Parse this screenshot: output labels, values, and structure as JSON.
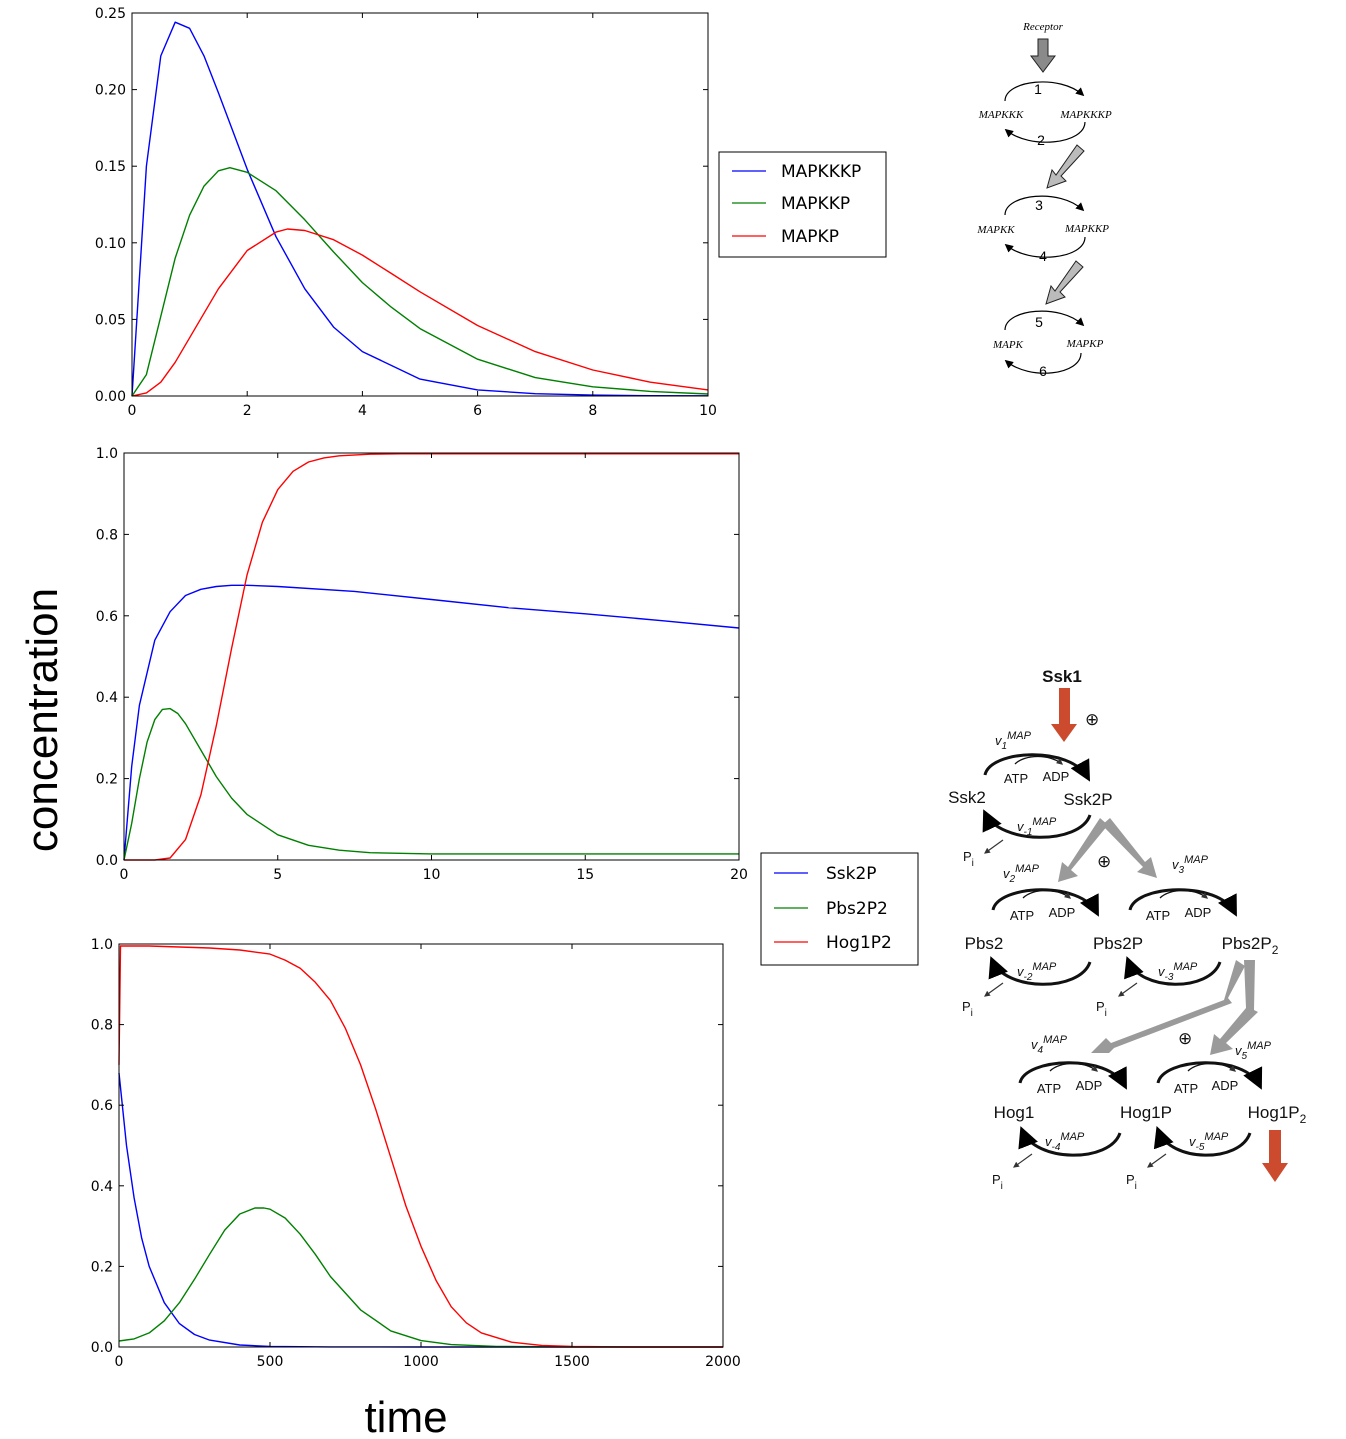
{
  "axis_labels": {
    "y": "concentration",
    "x": "time"
  },
  "colors": {
    "blue": "#0000ff",
    "green": "#008000",
    "red": "#ff0000",
    "grey_arrow": "#9a9a9a",
    "orange_arrow": "#cc4a2e"
  },
  "chart_data": [
    {
      "type": "line",
      "xlim": [
        0,
        10
      ],
      "ylim": [
        0,
        0.25
      ],
      "xticks": [
        "0",
        "2",
        "4",
        "6",
        "8",
        "10"
      ],
      "yticks": [
        "0.00",
        "0.05",
        "0.10",
        "0.15",
        "0.20",
        "0.25"
      ],
      "legend_position": "right",
      "series": [
        {
          "name": "MAPKKKP",
          "color": "blue",
          "x": [
            0,
            0.1,
            0.25,
            0.5,
            0.75,
            1,
            1.25,
            1.5,
            2,
            2.5,
            3,
            3.5,
            4,
            5,
            6,
            7,
            8,
            9,
            10
          ],
          "y": [
            0,
            0.06,
            0.15,
            0.222,
            0.244,
            0.24,
            0.222,
            0.198,
            0.148,
            0.104,
            0.07,
            0.045,
            0.029,
            0.011,
            0.004,
            0.0015,
            0.0006,
            0.0002,
            0.0001
          ]
        },
        {
          "name": "MAPKKP",
          "color": "green",
          "x": [
            0,
            0.25,
            0.5,
            0.75,
            1,
            1.25,
            1.5,
            1.7,
            2,
            2.5,
            3,
            3.5,
            4,
            4.5,
            5,
            6,
            7,
            8,
            9,
            10
          ],
          "y": [
            0,
            0.014,
            0.052,
            0.09,
            0.118,
            0.137,
            0.147,
            0.149,
            0.146,
            0.134,
            0.115,
            0.094,
            0.074,
            0.058,
            0.044,
            0.024,
            0.012,
            0.006,
            0.003,
            0.0013
          ]
        },
        {
          "name": "MAPKP",
          "color": "red",
          "x": [
            0,
            0.25,
            0.5,
            0.75,
            1,
            1.5,
            2,
            2.5,
            2.7,
            3,
            3.5,
            4,
            4.5,
            5,
            6,
            7,
            8,
            9,
            10
          ],
          "y": [
            0,
            0.002,
            0.009,
            0.022,
            0.038,
            0.07,
            0.095,
            0.107,
            0.109,
            0.108,
            0.102,
            0.092,
            0.08,
            0.068,
            0.046,
            0.029,
            0.017,
            0.009,
            0.004
          ]
        }
      ]
    },
    {
      "type": "line",
      "xlim": [
        0,
        20
      ],
      "ylim": [
        0,
        1.0
      ],
      "xticks": [
        "0",
        "5",
        "10",
        "15",
        "20"
      ],
      "yticks": [
        "0.0",
        "0.2",
        "0.4",
        "0.6",
        "0.8",
        "1.0"
      ],
      "legend_position": "bottom-right outside",
      "series": [
        {
          "name": "Ssk2P",
          "color": "blue",
          "x": [
            0,
            0.25,
            0.5,
            1,
            1.5,
            2,
            2.5,
            3,
            3.5,
            4,
            5,
            7.5,
            10,
            12.5,
            15,
            17.5,
            20
          ],
          "y": [
            0,
            0.23,
            0.38,
            0.54,
            0.61,
            0.65,
            0.665,
            0.672,
            0.675,
            0.675,
            0.672,
            0.66,
            0.64,
            0.62,
            0.605,
            0.588,
            0.57
          ]
        },
        {
          "name": "Pbs2P2",
          "color": "green",
          "x": [
            0,
            0.25,
            0.5,
            0.75,
            1,
            1.25,
            1.5,
            1.75,
            2,
            2.5,
            3,
            3.5,
            4,
            5,
            6,
            7,
            8,
            10,
            12.5,
            15,
            20
          ],
          "y": [
            0,
            0.09,
            0.2,
            0.29,
            0.345,
            0.37,
            0.372,
            0.36,
            0.335,
            0.27,
            0.205,
            0.152,
            0.112,
            0.062,
            0.036,
            0.024,
            0.018,
            0.015,
            0.015,
            0.015,
            0.015
          ]
        },
        {
          "name": "Hog1P2",
          "color": "red",
          "x": [
            0,
            1,
            1.5,
            2,
            2.5,
            3,
            3.5,
            4,
            4.5,
            5,
            5.5,
            6,
            6.5,
            7,
            8,
            9,
            10,
            12,
            15,
            20
          ],
          "y": [
            0,
            0,
            0.005,
            0.05,
            0.16,
            0.33,
            0.52,
            0.7,
            0.83,
            0.91,
            0.955,
            0.978,
            0.988,
            0.993,
            0.997,
            0.998,
            0.998,
            0.998,
            0.998,
            0.998
          ]
        }
      ]
    },
    {
      "type": "line",
      "xlim": [
        0,
        2000
      ],
      "ylim": [
        0,
        1.0
      ],
      "xticks": [
        "0",
        "500",
        "1000",
        "1500",
        "2000"
      ],
      "yticks": [
        "0.0",
        "0.2",
        "0.4",
        "0.6",
        "0.8",
        "1.0"
      ],
      "series": [
        {
          "color": "blue",
          "x": [
            0,
            25,
            50,
            75,
            100,
            150,
            200,
            250,
            300,
            400,
            500,
            700,
            1000,
            1500,
            2000
          ],
          "y": [
            0.68,
            0.5,
            0.37,
            0.27,
            0.2,
            0.11,
            0.058,
            0.031,
            0.017,
            0.005,
            0.0015,
            0.0002,
            0,
            0,
            0
          ]
        },
        {
          "color": "green",
          "x": [
            0,
            50,
            100,
            150,
            200,
            250,
            300,
            350,
            400,
            450,
            480,
            500,
            550,
            600,
            650,
            700,
            800,
            900,
            1000,
            1100,
            1250,
            1500,
            2000
          ],
          "y": [
            0.015,
            0.02,
            0.035,
            0.065,
            0.11,
            0.168,
            0.23,
            0.29,
            0.33,
            0.345,
            0.345,
            0.342,
            0.32,
            0.28,
            0.23,
            0.175,
            0.092,
            0.04,
            0.016,
            0.006,
            0.0015,
            0,
            0
          ]
        },
        {
          "color": "red",
          "x": [
            0,
            5,
            100,
            300,
            400,
            500,
            550,
            600,
            650,
            700,
            750,
            800,
            850,
            900,
            950,
            1000,
            1050,
            1100,
            1150,
            1200,
            1300,
            1400,
            1500,
            1700,
            2000
          ],
          "y": [
            0.7,
            0.995,
            0.995,
            0.99,
            0.985,
            0.975,
            0.96,
            0.94,
            0.905,
            0.86,
            0.79,
            0.7,
            0.59,
            0.47,
            0.35,
            0.25,
            0.165,
            0.1,
            0.06,
            0.035,
            0.012,
            0.004,
            0.0015,
            0,
            0
          ]
        }
      ]
    }
  ],
  "diagram_top": {
    "receptor": "Receptor",
    "rows": [
      {
        "left": "MAPKKK",
        "right": "MAPKKKP",
        "fwd": "1",
        "back": "2"
      },
      {
        "left": "MAPKK",
        "right": "MAPKKP",
        "fwd": "3",
        "back": "4"
      },
      {
        "left": "MAPK",
        "right": "MAPKP",
        "fwd": "5",
        "back": "6"
      }
    ]
  },
  "diagram_bottom": {
    "input": "Ssk1",
    "plus": "⊕",
    "atp": "ATP",
    "adp": "ADP",
    "pi": "P",
    "pi_sub": "i",
    "map": "MAP",
    "nodes": {
      "ssk2": "Ssk2",
      "ssk2p": "Ssk2P",
      "pbs2": "Pbs2",
      "pbs2p": "Pbs2P",
      "pbs2p2": "Pbs2P",
      "pbs2p2_sub": "2",
      "hog1": "Hog1",
      "hog1p": "Hog1P",
      "hog1p2": "Hog1P",
      "hog1p2_sub": "2"
    },
    "rates": {
      "v1": "1",
      "vm1": "-1",
      "v2": "2",
      "vm2": "-2",
      "v3": "3",
      "vm3": "-3",
      "v4": "4",
      "vm4": "-4",
      "v5": "5",
      "vm5": "-5"
    }
  }
}
